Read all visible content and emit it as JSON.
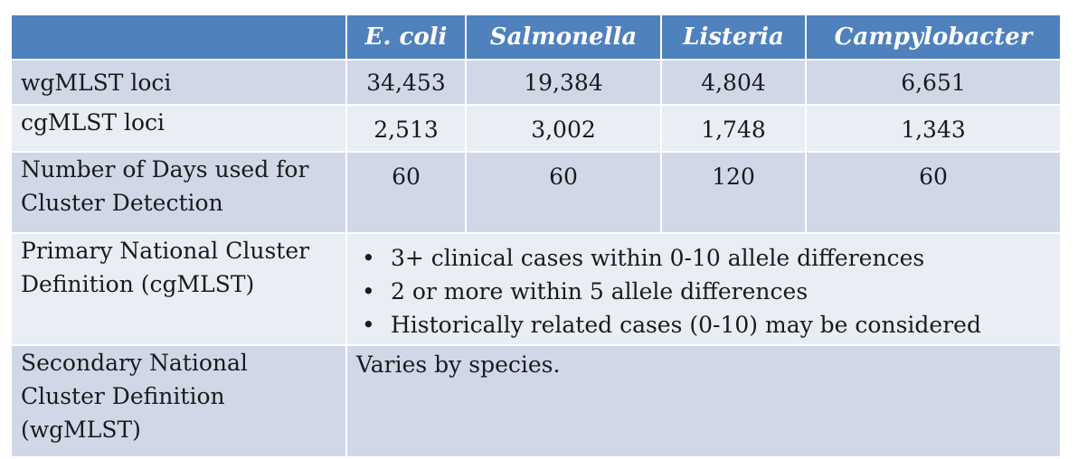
{
  "table": {
    "headers": [
      "",
      "E. coli",
      "Salmonella",
      "Listeria",
      "Campylobacter"
    ],
    "rows": [
      {
        "label": "wgMLST loci",
        "values": [
          "34,453",
          "19,384",
          "4,804",
          "6,651"
        ]
      },
      {
        "label": "cgMLST loci",
        "values": [
          "2,513",
          "3,002",
          "1,748",
          "1,343"
        ]
      },
      {
        "label": "Number of Days used for Cluster Detection",
        "values": [
          "60",
          "60",
          "120",
          "60"
        ]
      }
    ],
    "primary": {
      "label": "Primary National Cluster Definition (cgMLST)",
      "bullet_char": "•",
      "bullets": [
        "3+ clinical cases within 0-10 allele differences",
        "2 or more within 5 allele differences",
        "Historically related cases (0-10) may be considered"
      ]
    },
    "secondary": {
      "label": "Secondary National Cluster Definition (wgMLST)",
      "text": "Varies by species."
    }
  },
  "colors": {
    "header_bg": "#4f81bd",
    "row_odd": "#d0d8e8",
    "row_even": "#e9edf4"
  }
}
